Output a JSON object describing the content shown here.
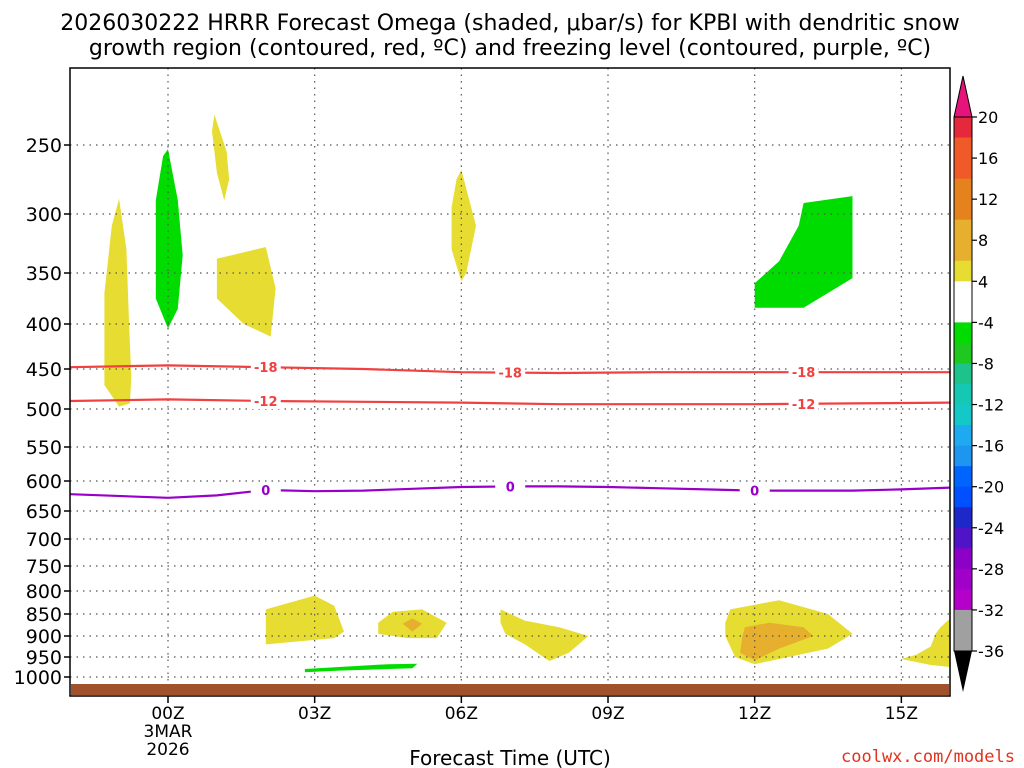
{
  "title_line1": "2026030222 HRRR Forecast Omega (shaded, μbar/s) for KPBI with dendritic snow",
  "title_line2": "growth region (contoured, red, ºC) and freezing level (contoured, purple, ºC)",
  "xlabel": "Forecast Time (UTC)",
  "credit": "coolwx.com/models",
  "colors": {
    "shade_yellow": "#e6dc32",
    "shade_orange": "#e6af2d",
    "shade_green": "#00dc00",
    "shade_green_dark": "#1ec31e",
    "ground": "#a0522d",
    "dgz_line": "#f04040",
    "freezing_line": "#9600c8"
  },
  "chart_data": {
    "type": "heatmap",
    "xaxis": {
      "range_hours": [
        -2,
        16
      ],
      "ticks": [
        {
          "hour": 0,
          "label": "00Z"
        },
        {
          "hour": 3,
          "label": "03Z"
        },
        {
          "hour": 6,
          "label": "06Z"
        },
        {
          "hour": 9,
          "label": "09Z"
        },
        {
          "hour": 12,
          "label": "12Z"
        },
        {
          "hour": 15,
          "label": "15Z"
        }
      ],
      "date_label_line1": "3MAR",
      "date_label_line2": "2026"
    },
    "yaxis": {
      "unit": "hPa",
      "reversed": true,
      "ticks": [
        250,
        300,
        350,
        400,
        450,
        500,
        550,
        600,
        650,
        700,
        750,
        800,
        850,
        900,
        950,
        1000
      ]
    },
    "grid": true,
    "colorbar": {
      "labels": [
        "20",
        "16",
        "12",
        "8",
        "4",
        "-4",
        "-8",
        "-12",
        "-16",
        "-20",
        "-24",
        "-28",
        "-32",
        "-36"
      ],
      "colors": [
        "#e6283c",
        "#f05a28",
        "#e6821e",
        "#e6af2d",
        "#e6dc32",
        "#ffffff",
        "#00dc00",
        "#1ec38c",
        "#14c8c8",
        "#1e96f0",
        "#0050ff",
        "#1e28c8",
        "#8c00c8",
        "#a000c8",
        "#a0a0a0"
      ]
    },
    "contours": [
      {
        "name": "-18",
        "color": "#f04040",
        "label_hours": [
          2.0,
          7.0,
          13.0
        ],
        "points": [
          [
            -2,
            448
          ],
          [
            0,
            446
          ],
          [
            2,
            448
          ],
          [
            4,
            450
          ],
          [
            6,
            454
          ],
          [
            8,
            455
          ],
          [
            10,
            454
          ],
          [
            12,
            454
          ],
          [
            14,
            454
          ],
          [
            16,
            454
          ]
        ]
      },
      {
        "name": "-12",
        "color": "#f04040",
        "label_hours": [
          2.0,
          13.0
        ],
        "points": [
          [
            -2,
            490
          ],
          [
            0,
            488
          ],
          [
            2,
            490
          ],
          [
            4,
            491
          ],
          [
            6,
            492
          ],
          [
            8,
            494
          ],
          [
            10,
            494
          ],
          [
            12,
            494
          ],
          [
            14,
            493
          ],
          [
            16,
            492
          ]
        ]
      },
      {
        "name": "0",
        "color": "#9600c8",
        "label_hours": [
          2.0,
          7.0,
          12.0
        ],
        "points": [
          [
            -2,
            622
          ],
          [
            0,
            628
          ],
          [
            1,
            624
          ],
          [
            2,
            615
          ],
          [
            3,
            617
          ],
          [
            4,
            616
          ],
          [
            5,
            613
          ],
          [
            6,
            610
          ],
          [
            7,
            609
          ],
          [
            8,
            609
          ],
          [
            9,
            610
          ],
          [
            10,
            612
          ],
          [
            11,
            614
          ],
          [
            12,
            616
          ],
          [
            13,
            616
          ],
          [
            14,
            616
          ],
          [
            15,
            614
          ],
          [
            16,
            611
          ]
        ]
      }
    ],
    "shaded_regions": [
      {
        "value": 4,
        "color": "#e6dc32",
        "points": [
          [
            -1.0,
            289
          ],
          [
            -0.85,
            330
          ],
          [
            -0.8,
            395
          ],
          [
            -0.75,
            460
          ],
          [
            -0.78,
            493
          ],
          [
            -1.0,
            497
          ],
          [
            -1.3,
            470
          ],
          [
            -1.3,
            420
          ],
          [
            -1.3,
            370
          ],
          [
            -1.15,
            310
          ]
        ]
      },
      {
        "value": -8,
        "color": "#00dc00",
        "points": [
          [
            0,
            253
          ],
          [
            0.2,
            290
          ],
          [
            0.3,
            335
          ],
          [
            0.2,
            385
          ],
          [
            0,
            405
          ],
          [
            -0.25,
            375
          ],
          [
            -0.25,
            290
          ],
          [
            -0.1,
            258
          ]
        ]
      },
      {
        "value": 4,
        "color": "#e6dc32",
        "points": [
          [
            0.95,
            228
          ],
          [
            1.2,
            255
          ],
          [
            1.25,
            275
          ],
          [
            1.15,
            290
          ],
          [
            1.0,
            270
          ],
          [
            0.9,
            240
          ]
        ]
      },
      {
        "value": 4,
        "color": "#e6dc32",
        "points": [
          [
            1.0,
            338
          ],
          [
            2.0,
            328
          ],
          [
            2.2,
            365
          ],
          [
            2.1,
            414
          ],
          [
            1.55,
            400
          ],
          [
            1.0,
            375
          ]
        ]
      },
      {
        "value": 4,
        "color": "#e6dc32",
        "points": [
          [
            6.0,
            268
          ],
          [
            6.3,
            310
          ],
          [
            6.1,
            350
          ],
          [
            6.0,
            358
          ],
          [
            5.8,
            330
          ],
          [
            5.8,
            295
          ],
          [
            5.9,
            275
          ]
        ]
      },
      {
        "value": -8,
        "color": "#00dc00",
        "points": [
          [
            13.0,
            292
          ],
          [
            14.0,
            287
          ],
          [
            14.0,
            355
          ],
          [
            13.0,
            384
          ],
          [
            12.0,
            384
          ],
          [
            12.0,
            360
          ],
          [
            12.5,
            340
          ],
          [
            12.9,
            310
          ]
        ]
      },
      {
        "value": 4,
        "color": "#e6dc32",
        "points": [
          [
            2.0,
            840
          ],
          [
            3.0,
            810
          ],
          [
            3.4,
            832
          ],
          [
            3.6,
            890
          ],
          [
            3.4,
            905
          ],
          [
            2.0,
            920
          ]
        ]
      },
      {
        "value": -8,
        "color": "#00dc00",
        "points": [
          [
            2.8,
            980
          ],
          [
            4.5,
            968
          ],
          [
            5.1,
            967
          ],
          [
            5.0,
            978
          ],
          [
            3.5,
            984
          ],
          [
            2.8,
            988
          ]
        ]
      },
      {
        "value": 4,
        "color": "#e6dc32",
        "points": [
          [
            4.6,
            845
          ],
          [
            5.2,
            840
          ],
          [
            5.7,
            870
          ],
          [
            5.5,
            905
          ],
          [
            4.9,
            905
          ],
          [
            4.3,
            895
          ],
          [
            4.3,
            870
          ]
        ]
      },
      {
        "value": 8,
        "color": "#e6af2d",
        "points": [
          [
            5.0,
            860
          ],
          [
            5.2,
            872
          ],
          [
            5.0,
            890
          ],
          [
            4.8,
            872
          ]
        ]
      },
      {
        "value": 4,
        "color": "#e6dc32",
        "points": [
          [
            6.8,
            840
          ],
          [
            7.3,
            865
          ],
          [
            8.0,
            880
          ],
          [
            8.6,
            900
          ],
          [
            8.2,
            940
          ],
          [
            7.8,
            960
          ],
          [
            7.3,
            920
          ],
          [
            6.9,
            895
          ],
          [
            6.8,
            870
          ]
        ]
      },
      {
        "value": 4,
        "color": "#e6dc32",
        "points": [
          [
            11.5,
            840
          ],
          [
            12.5,
            820
          ],
          [
            13.5,
            850
          ],
          [
            14.0,
            895
          ],
          [
            13.5,
            930
          ],
          [
            12.5,
            955
          ],
          [
            12.0,
            968
          ],
          [
            11.6,
            950
          ],
          [
            11.4,
            900
          ],
          [
            11.4,
            870
          ]
        ]
      },
      {
        "value": 8,
        "color": "#e6af2d",
        "points": [
          [
            11.8,
            880
          ],
          [
            12.3,
            870
          ],
          [
            13.0,
            880
          ],
          [
            13.2,
            900
          ],
          [
            12.5,
            930
          ],
          [
            12.0,
            958
          ],
          [
            11.7,
            940
          ],
          [
            11.75,
            900
          ]
        ]
      },
      {
        "value": 4,
        "color": "#e6dc32",
        "points": [
          [
            15.8,
            880
          ],
          [
            16.0,
            860
          ],
          [
            16.0,
            975
          ],
          [
            15.6,
            970
          ],
          [
            15.0,
            955
          ],
          [
            15.3,
            945
          ],
          [
            15.6,
            925
          ],
          [
            15.7,
            895
          ]
        ]
      }
    ]
  }
}
